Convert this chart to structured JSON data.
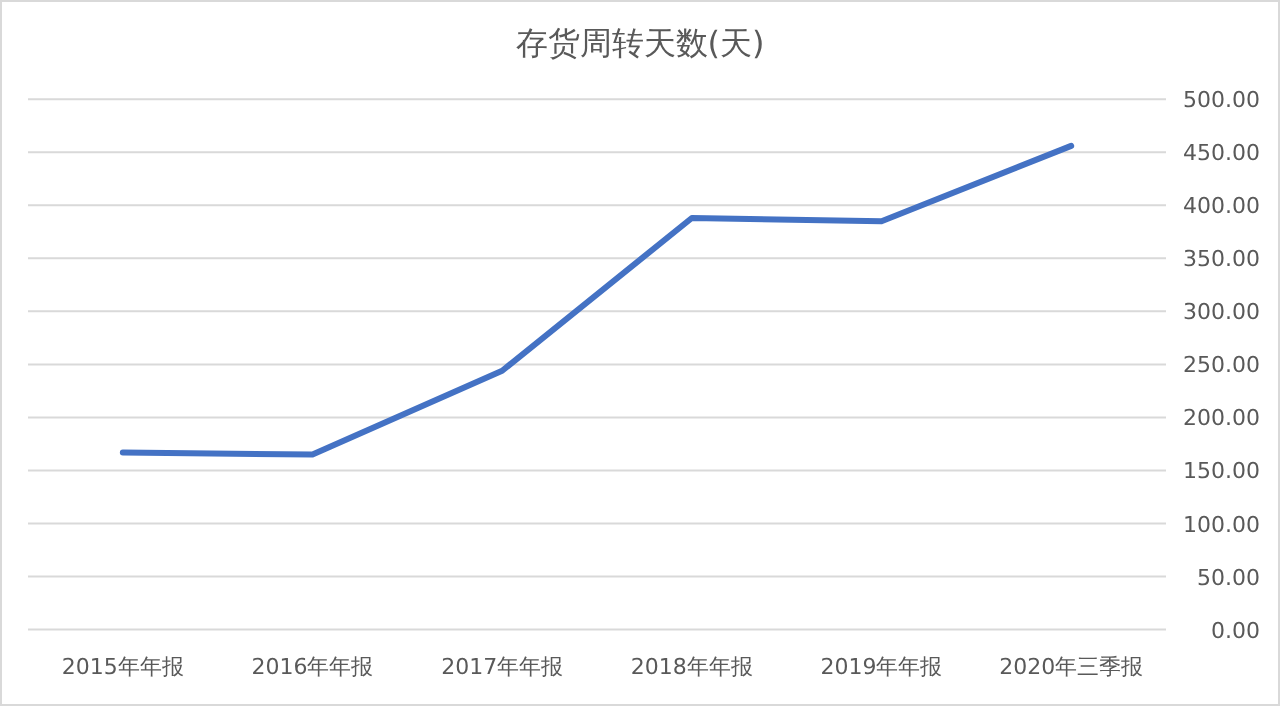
{
  "chart_data": {
    "type": "line",
    "title": "存货周转天数(天)",
    "categories": [
      "2015年年报",
      "2016年年报",
      "2017年年报",
      "2018年年报",
      "2019年年报",
      "2020年三季报"
    ],
    "series": [
      {
        "color": "#4472c4",
        "values": [
          167,
          165,
          244,
          388,
          385,
          456
        ]
      }
    ],
    "ylim": [
      0,
      500
    ],
    "yticks": [
      {
        "value": 0,
        "label": "0.00"
      },
      {
        "value": 50,
        "label": "50.00"
      },
      {
        "value": 100,
        "label": "100.00"
      },
      {
        "value": 150,
        "label": "150.00"
      },
      {
        "value": 200,
        "label": "200.00"
      },
      {
        "value": 250,
        "label": "250.00"
      },
      {
        "value": 300,
        "label": "300.00"
      },
      {
        "value": 350,
        "label": "350.00"
      },
      {
        "value": 400,
        "label": "400.00"
      },
      {
        "value": 450,
        "label": "450.00"
      },
      {
        "value": 500,
        "label": "500.00"
      }
    ],
    "grid": "y",
    "marker": "none",
    "line_style": "solid"
  }
}
